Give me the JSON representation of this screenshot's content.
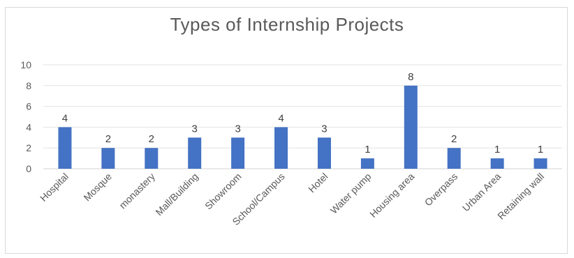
{
  "chart_data": {
    "type": "bar",
    "title": "Types of Internship Projects",
    "xlabel": "",
    "ylabel": "",
    "categories": [
      "Hospital",
      "Mosque",
      "monastery",
      "Mall/Building",
      "Showroom",
      "School/Campus",
      "Hotel",
      "Water pump",
      "Housing area",
      "Overpass",
      "Urban Area",
      "Retaining wall"
    ],
    "values": [
      4,
      2,
      2,
      3,
      3,
      4,
      3,
      1,
      8,
      2,
      1,
      1
    ],
    "ylim": [
      0,
      10
    ],
    "yticks": [
      0,
      2,
      4,
      6,
      8,
      10
    ],
    "grid": true,
    "legend": "none",
    "bar_color": "#4472c4"
  }
}
